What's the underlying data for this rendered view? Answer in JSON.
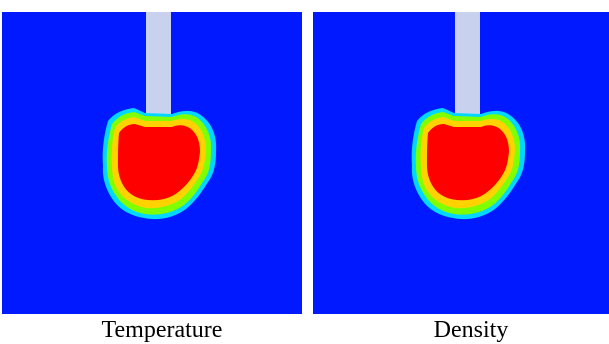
{
  "panels": [
    {
      "caption": "Temperature",
      "colors": {
        "background": "#0019ff",
        "inner_blob": "#ff0000",
        "outer_ring": "#00d8ff",
        "middle_ring": "#7fff00",
        "transition_ring": "#ffd200",
        "rod": "#c8d2ef"
      }
    },
    {
      "caption": "Density",
      "colors": {
        "background": "#0019ff",
        "inner_blob": "#ff0000",
        "outer_ring": "#00d8ff",
        "middle_ring": "#7fff00",
        "transition_ring": "#ffd200",
        "rod": "#c8d2ef"
      }
    }
  ]
}
